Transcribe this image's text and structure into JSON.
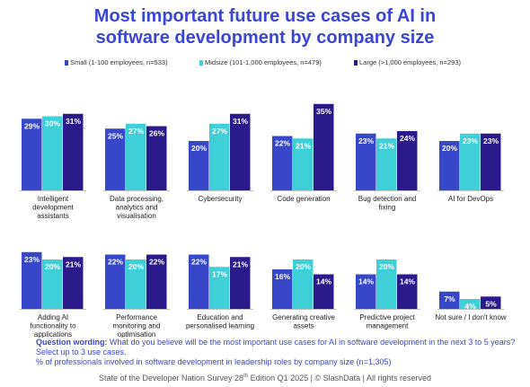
{
  "title_line1": "Most important future use cases of AI in",
  "title_line2": "software development by company size",
  "colors": {
    "small": "#3648c9",
    "midsize": "#3fcfd8",
    "large": "#2a1a8c"
  },
  "question_label": "Question wording:",
  "question_text": "What do you believe will be the most important use cases for AI in software development in the next 3 to 5 years? Select up to 3 use cases.",
  "note_text": "% of professionals involved in software development in leadership roles by company size (n=1,305)",
  "footer_pre": "State of the Developer Nation Survey 28",
  "footer_sup": "th",
  "footer_post": " Edition Q1 2025 | © SlashData | All rights reserved",
  "chart_data": {
    "type": "bar",
    "title": "Most important future use cases of AI in software development by company size",
    "legend_position": "top",
    "series": [
      {
        "name": "Small (1-100 employees, n=533)",
        "values": [
          29,
          25,
          20,
          22,
          23,
          20,
          23,
          22,
          22,
          16,
          14,
          7
        ]
      },
      {
        "name": "Midsize (101-1,000 employees, n=479)",
        "values": [
          30,
          27,
          27,
          21,
          21,
          23,
          20,
          20,
          17,
          20,
          20,
          4
        ]
      },
      {
        "name": "Large (>1,000 employees, n=293)",
        "values": [
          31,
          26,
          31,
          35,
          24,
          23,
          21,
          22,
          21,
          14,
          14,
          5
        ]
      }
    ],
    "categories": [
      [
        "Intelligent",
        "development",
        "assistants"
      ],
      [
        "Data processing,",
        "analytics and",
        "visualisation"
      ],
      [
        "Cybersecurity"
      ],
      [
        "Code generation"
      ],
      [
        "Bug detection and",
        "fixing"
      ],
      [
        "AI for DevOps"
      ],
      [
        "Adding AI",
        "functionality to",
        "applications"
      ],
      [
        "Performance",
        "monitoring and",
        "optimisation"
      ],
      [
        "Education and",
        "personalised learning"
      ],
      [
        "Generating creative",
        "assets"
      ],
      [
        "Predictive project",
        "management"
      ],
      [
        "Not sure / I don't know"
      ]
    ],
    "value_suffix": "%"
  }
}
